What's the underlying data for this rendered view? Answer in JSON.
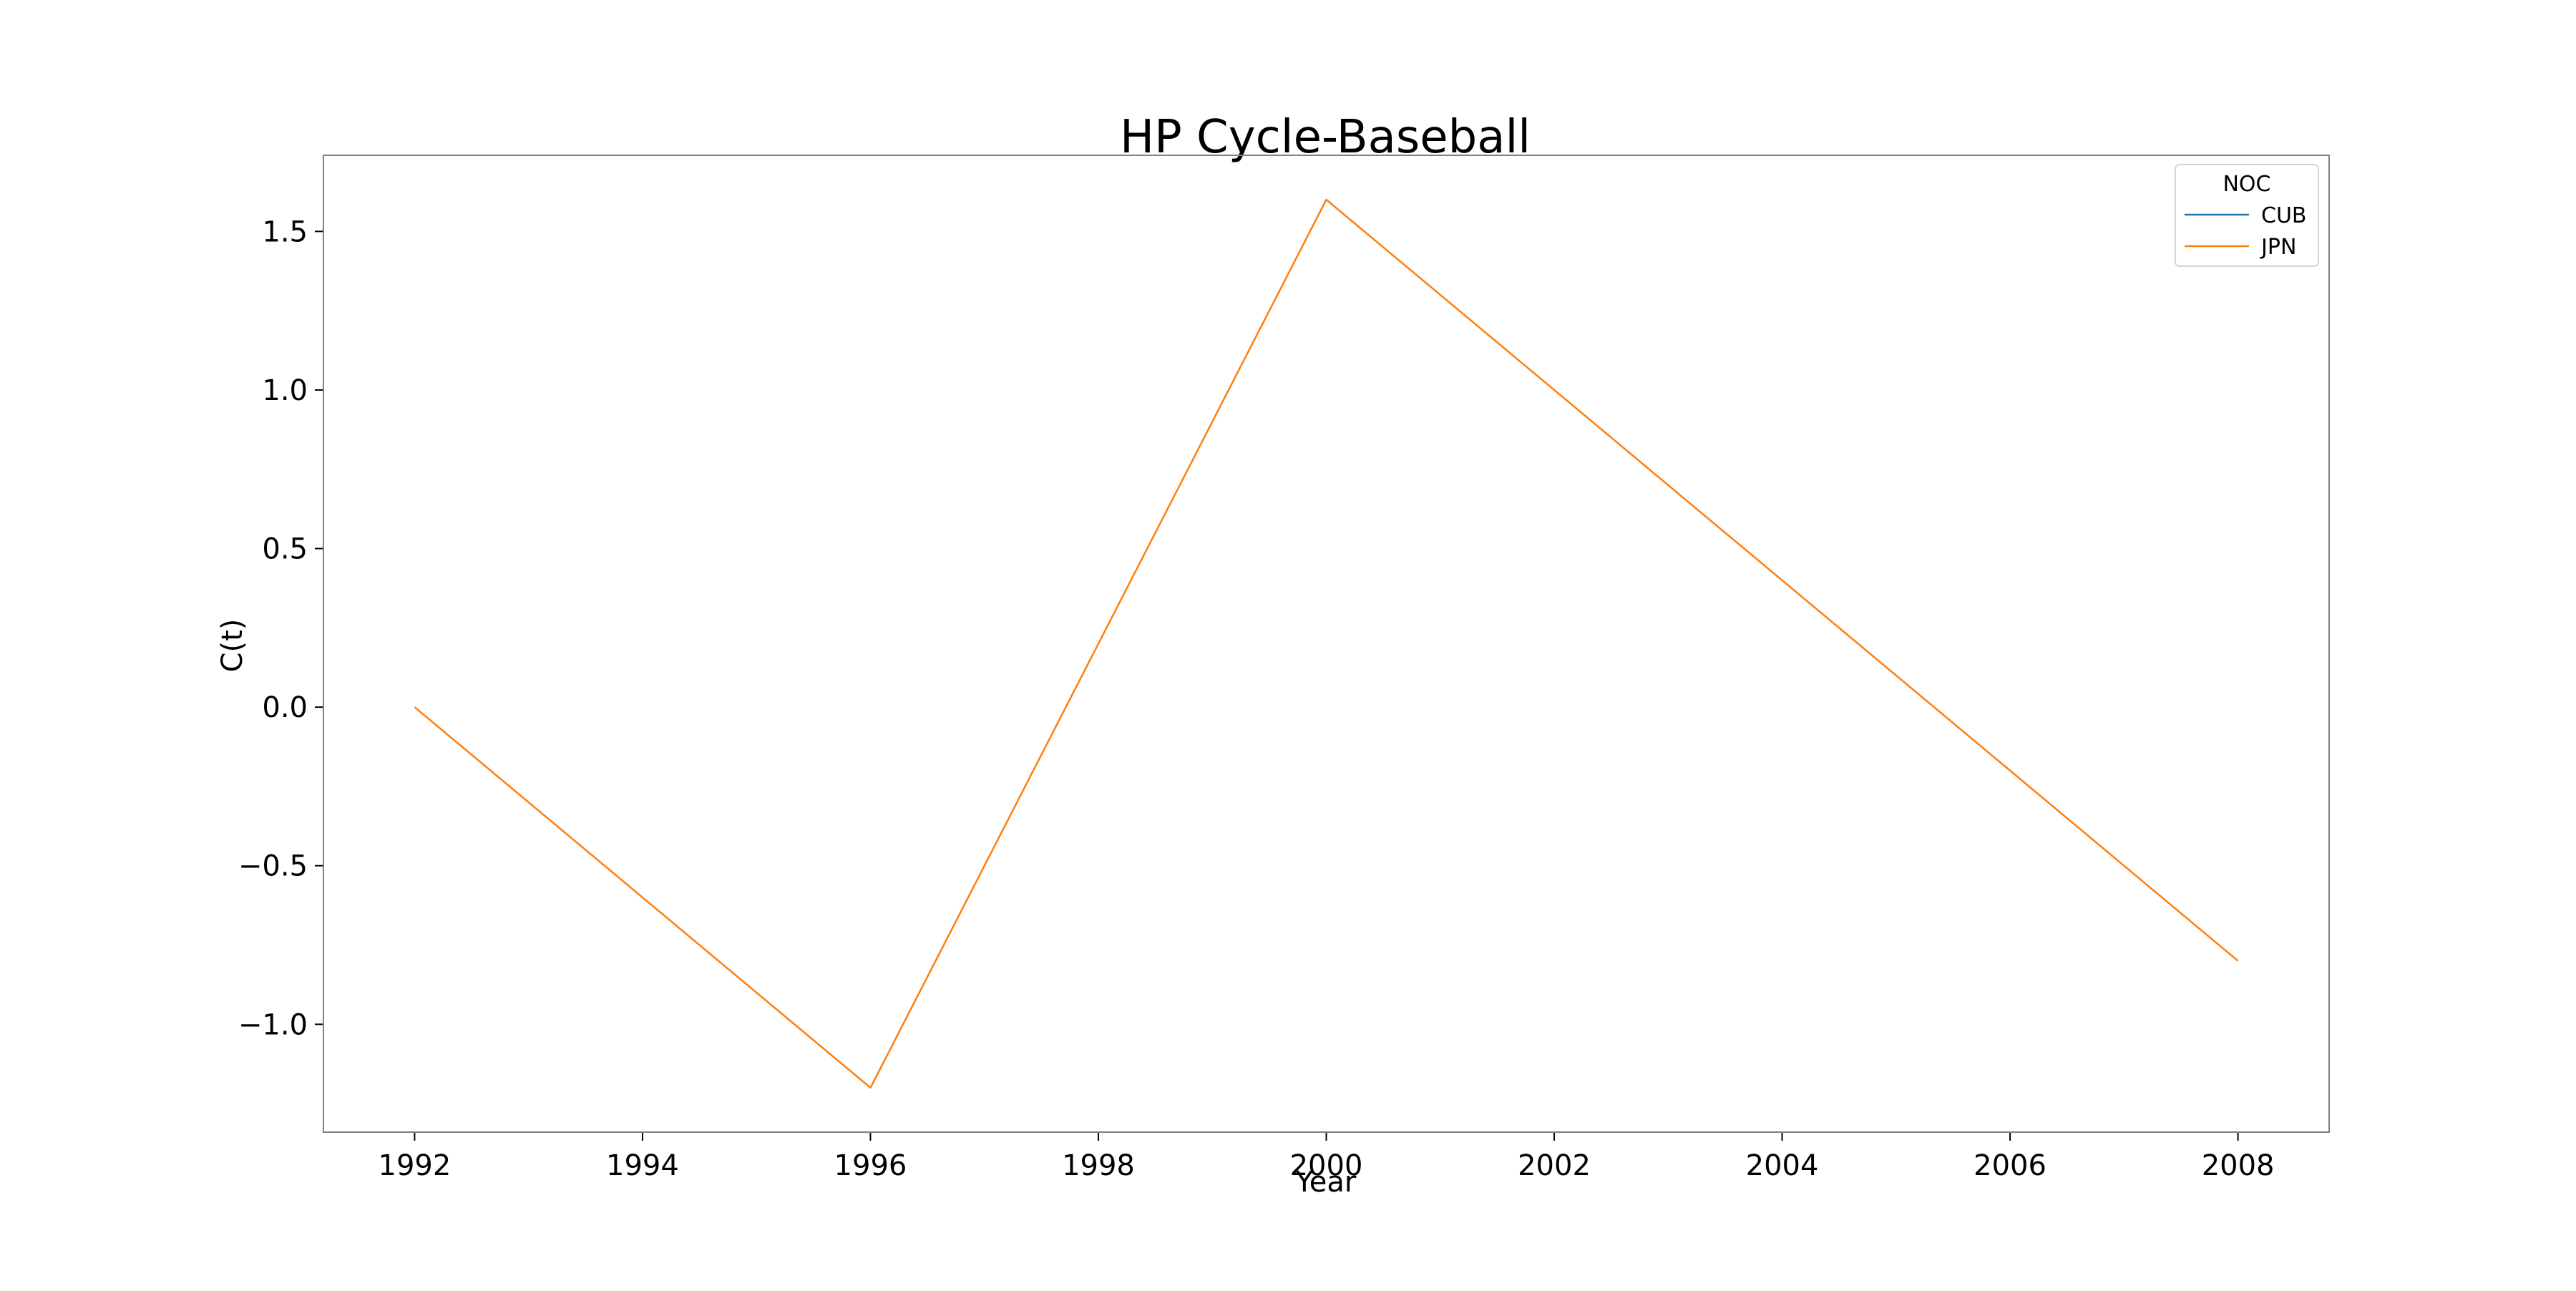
{
  "chart_data": {
    "type": "line",
    "title": "HP Cycle-Baseball",
    "xlabel": "Year",
    "ylabel": "C(t)",
    "xlim": [
      1991.2,
      2008.8
    ],
    "ylim": [
      -1.34,
      1.74
    ],
    "xticks": [
      1992,
      1994,
      1996,
      1998,
      2000,
      2002,
      2004,
      2006,
      2008
    ],
    "yticks": [
      -1.0,
      -0.5,
      0.0,
      0.5,
      1.0,
      1.5
    ],
    "ytick_labels": [
      "−1.0",
      "−0.5",
      "0.0",
      "0.5",
      "1.0",
      "1.5"
    ],
    "grid": false,
    "legend": {
      "title": "NOC",
      "placement": "top-right"
    },
    "series": [
      {
        "name": "CUB",
        "color": "#1f77b4",
        "x": [],
        "y": []
      },
      {
        "name": "JPN",
        "color": "#ff7f0e",
        "x": [
          1992,
          1996,
          2000,
          2008
        ],
        "y": [
          0.0,
          -1.2,
          1.6,
          -0.8
        ]
      }
    ]
  }
}
